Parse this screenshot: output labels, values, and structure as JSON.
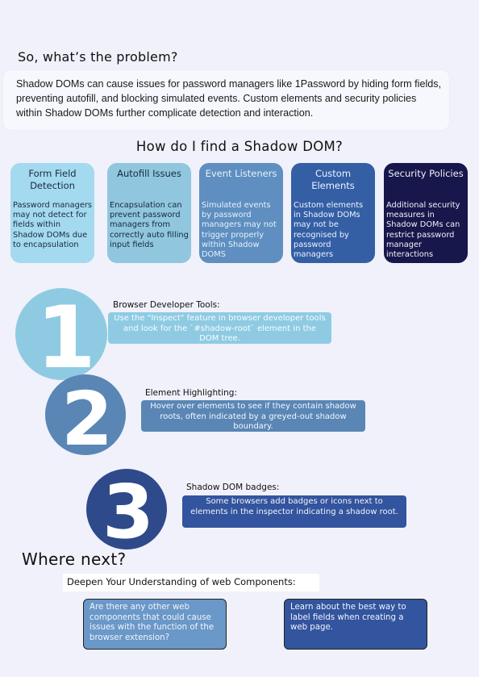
{
  "problem": {
    "title": "So, what’s the problem?",
    "text": "Shadow DOMs can cause issues for password managers like 1Password by hiding form fields, preventing autofill, and blocking simulated events. Custom elements and security policies within Shadow DOMs further complicate detection and interaction."
  },
  "find": {
    "title": "How do I find a Shadow DOM?"
  },
  "cards": [
    {
      "title": "Form Field Detection",
      "body": "Password managers may not detect for fields within Shadow DOMs due to encapsulation"
    },
    {
      "title": "Autofill Issues",
      "body": "Encapsulation can prevent password managers from correctly auto filling input fields"
    },
    {
      "title": "Event Listeners",
      "body": "Simulated events by password managers may not trigger properly within Shadow DOMS"
    },
    {
      "title": "Custom Elements",
      "body": "Custom elements in Shadow DOMs may not be recognised by password managers"
    },
    {
      "title": "Security Policies",
      "body": "Additional security measures in Shadow DOMs can restrict password manager interactions"
    }
  ],
  "steps": [
    {
      "number": "1",
      "title": "Browser Developer Tools:",
      "text": "Use the \"Inspect\" feature in browser developer tools and look for the `#shadow-root` element in the DOM tree.",
      "color": "#8ecbe3",
      "box_color": "#8ecbe3"
    },
    {
      "number": "2",
      "title": "Element Highlighting:",
      "text": "Hover over elements to see if they contain shadow roots, often indicated by a greyed-out shadow boundary.",
      "color": "#5a86b5",
      "box_color": "#5a86b5"
    },
    {
      "number": "3",
      "title": "Shadow DOM badges:",
      "text": "Some browsers add badges or icons next to elements in the inspector indicating a shadow root.",
      "color": "#2f4a8a",
      "box_color": "#33549e"
    }
  ],
  "where": {
    "title": "Where next?",
    "subtitle": "Deepen Your Understanding of web Components:",
    "questions": [
      {
        "text": "Are there any other web components that could cause issues with the function of the browser extension?",
        "color": "#6a98c8"
      },
      {
        "text": "Learn about the best way to label fields when creating a web page.",
        "color": "#33549e"
      }
    ]
  }
}
